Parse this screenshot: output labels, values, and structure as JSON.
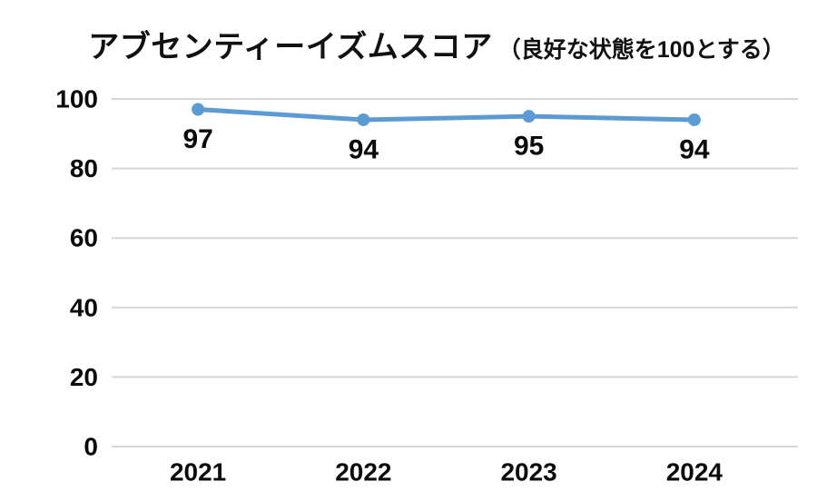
{
  "title": {
    "main": "アブセンティーイズムスコア",
    "sub": "（良好な状態を100とする）"
  },
  "chart_data": {
    "type": "line",
    "title": "アブセンティーイズムスコア（良好な状態を100とする）",
    "categories": [
      "2021",
      "2022",
      "2023",
      "2024"
    ],
    "series": [
      {
        "name": "アブセンティーイズムスコア",
        "values": [
          97,
          94,
          95,
          94
        ]
      }
    ],
    "data_labels": [
      "97",
      "94",
      "95",
      "94"
    ],
    "xlabel": "",
    "ylabel": "",
    "ylim": [
      0,
      100
    ],
    "yticks": [
      0,
      20,
      40,
      60,
      80,
      100
    ],
    "ytick_labels": [
      "0",
      "20",
      "40",
      "60",
      "80",
      "100"
    ],
    "grid": true,
    "legend_position": "none",
    "colors": {
      "line": "#5B9BD5",
      "marker": "#5B9BD5",
      "gridline": "#D6D6D6",
      "text": "#0b0b0b",
      "background": "#ffffff"
    }
  }
}
